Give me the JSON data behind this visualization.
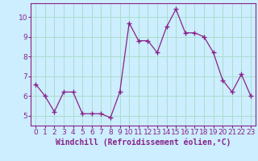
{
  "x": [
    0,
    1,
    2,
    3,
    4,
    5,
    6,
    7,
    8,
    9,
    10,
    11,
    12,
    13,
    14,
    15,
    16,
    17,
    18,
    19,
    20,
    21,
    22,
    23
  ],
  "y": [
    6.6,
    6.0,
    5.2,
    6.2,
    6.2,
    5.1,
    5.1,
    5.1,
    4.9,
    6.2,
    9.7,
    8.8,
    8.8,
    8.2,
    9.5,
    10.4,
    9.2,
    9.2,
    9.0,
    8.2,
    6.8,
    6.2,
    7.1,
    6.0
  ],
  "line_color": "#882288",
  "marker": "+",
  "marker_size": 4,
  "bg_color": "#cceeff",
  "grid_color": "#aaddcc",
  "xlabel": "Windchill (Refroidissement éolien,°C)",
  "ylabel": "",
  "xlim": [
    -0.5,
    23.5
  ],
  "ylim": [
    4.5,
    10.7
  ],
  "yticks": [
    5,
    6,
    7,
    8,
    9,
    10
  ],
  "xticks": [
    0,
    1,
    2,
    3,
    4,
    5,
    6,
    7,
    8,
    9,
    10,
    11,
    12,
    13,
    14,
    15,
    16,
    17,
    18,
    19,
    20,
    21,
    22,
    23
  ],
  "spine_color": "#882288",
  "tick_color": "#882288",
  "label_color": "#882288",
  "label_fontsize": 7,
  "tick_fontsize": 6.5
}
